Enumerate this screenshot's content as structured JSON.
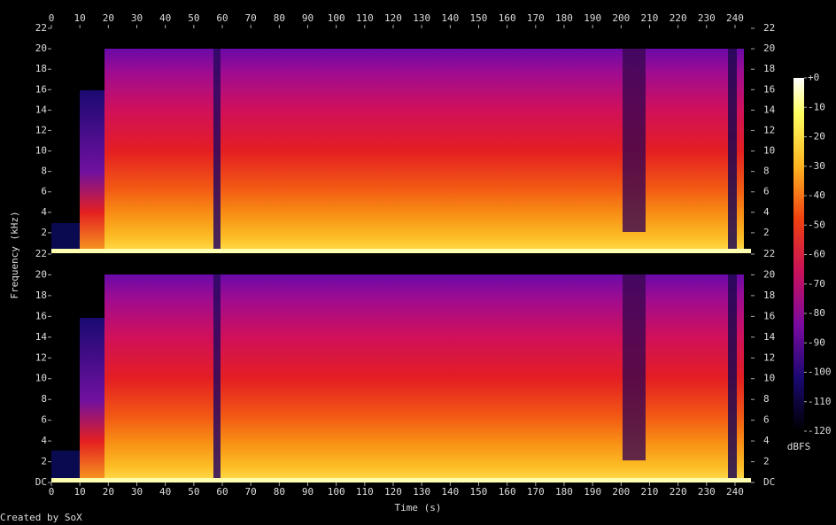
{
  "chart_data": {
    "type": "spectrogram",
    "x_label": "Time (s)",
    "y_label": "Frequency (kHz)",
    "xlim": [
      0,
      245.6
    ],
    "xticks": [
      0,
      10,
      20,
      30,
      40,
      50,
      60,
      70,
      80,
      90,
      100,
      110,
      120,
      130,
      140,
      150,
      160,
      170,
      180,
      190,
      200,
      210,
      220,
      230,
      240
    ],
    "channels": [
      {
        "ylim": [
          0,
          22
        ],
        "yticks": [
          2,
          4,
          6,
          8,
          10,
          12,
          14,
          16,
          18,
          20,
          22
        ]
      },
      {
        "ylim": [
          0,
          22
        ],
        "yticks": [
          {
            "value": 0,
            "label": "DC"
          },
          2,
          4,
          6,
          8,
          10,
          12,
          14,
          16,
          18,
          20,
          22
        ]
      }
    ],
    "colorbar": {
      "label": "dBFS",
      "lim": [
        -120,
        0
      ],
      "ticks": [
        {
          "value": 0,
          "label": "+0"
        },
        -10,
        -20,
        -30,
        -40,
        -50,
        -60,
        -70,
        -80,
        -90,
        -100,
        -110,
        -120
      ]
    }
  },
  "footer": "Created by SoX"
}
